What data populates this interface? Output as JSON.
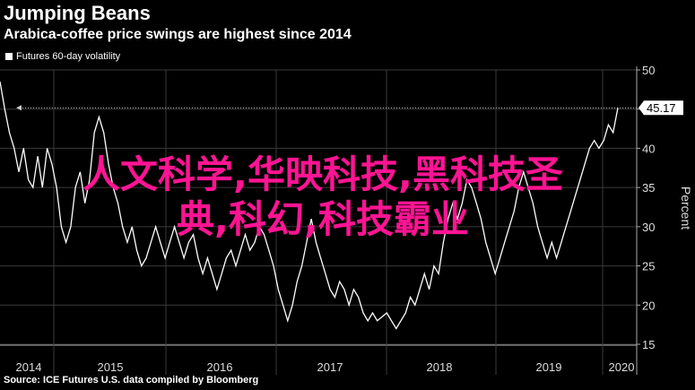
{
  "header": {
    "title": "Jumping Beans",
    "subtitle": "Arabica-coffee price swings are highest since 2014"
  },
  "legend": {
    "label": "Futures 60-day volatility"
  },
  "source": "Source: ICE Futures U.S. data compiled by Bloomberg",
  "overlay": {
    "line1": "人文科学,华映科技,黑科技圣",
    "line2": "典,科幻,科技霸业"
  },
  "colors": {
    "background": "#000000",
    "line": "#ffffff",
    "grid": "#3a3a3a",
    "overlay": "#ff1493"
  },
  "chart_data": {
    "type": "line",
    "ylabel": "Percent",
    "ylim": [
      15,
      50
    ],
    "yticks": [
      15,
      20,
      25,
      30,
      35,
      40,
      45,
      50
    ],
    "x_tick_labels": [
      "2014",
      "2015",
      "2016",
      "2017",
      "2018",
      "2019",
      "2020"
    ],
    "x_tick_positions": [
      2014.3,
      2015.5,
      2016.5,
      2017.5,
      2018.5,
      2019.5,
      2020.4
    ],
    "xlim": [
      2013.85,
      2020.6
    ],
    "last_value_label": "45.17",
    "reference_line": 45.17,
    "series": [
      {
        "values": [
          [
            2013.85,
            48.5
          ],
          [
            2013.9,
            45
          ],
          [
            2013.95,
            42
          ],
          [
            2014.0,
            40
          ],
          [
            2014.05,
            37
          ],
          [
            2014.1,
            40
          ],
          [
            2014.15,
            36
          ],
          [
            2014.2,
            35
          ],
          [
            2014.25,
            39
          ],
          [
            2014.3,
            35
          ],
          [
            2014.35,
            40
          ],
          [
            2014.4,
            38
          ],
          [
            2014.45,
            35
          ],
          [
            2014.5,
            30
          ],
          [
            2014.55,
            28
          ],
          [
            2014.6,
            30
          ],
          [
            2014.65,
            35
          ],
          [
            2014.7,
            37
          ],
          [
            2014.75,
            33
          ],
          [
            2014.8,
            36
          ],
          [
            2014.85,
            42
          ],
          [
            2014.9,
            44
          ],
          [
            2014.95,
            42
          ],
          [
            2015.0,
            38
          ],
          [
            2015.05,
            35
          ],
          [
            2015.1,
            33
          ],
          [
            2015.15,
            30
          ],
          [
            2015.2,
            28
          ],
          [
            2015.25,
            30
          ],
          [
            2015.3,
            27
          ],
          [
            2015.35,
            25
          ],
          [
            2015.4,
            26
          ],
          [
            2015.45,
            28
          ],
          [
            2015.5,
            30
          ],
          [
            2015.55,
            28
          ],
          [
            2015.6,
            26
          ],
          [
            2015.65,
            28
          ],
          [
            2015.7,
            30
          ],
          [
            2015.75,
            28
          ],
          [
            2015.8,
            26
          ],
          [
            2015.85,
            28
          ],
          [
            2015.9,
            29
          ],
          [
            2015.95,
            26
          ],
          [
            2016.0,
            24
          ],
          [
            2016.05,
            26
          ],
          [
            2016.1,
            24
          ],
          [
            2016.15,
            22
          ],
          [
            2016.2,
            24
          ],
          [
            2016.25,
            26
          ],
          [
            2016.3,
            27
          ],
          [
            2016.35,
            25
          ],
          [
            2016.4,
            27
          ],
          [
            2016.45,
            29
          ],
          [
            2016.5,
            27
          ],
          [
            2016.55,
            28
          ],
          [
            2016.6,
            30
          ],
          [
            2016.65,
            29
          ],
          [
            2016.7,
            27
          ],
          [
            2016.75,
            25
          ],
          [
            2016.8,
            22
          ],
          [
            2016.85,
            20
          ],
          [
            2016.9,
            18
          ],
          [
            2016.95,
            20
          ],
          [
            2017.0,
            23
          ],
          [
            2017.05,
            25
          ],
          [
            2017.1,
            28
          ],
          [
            2017.15,
            31
          ],
          [
            2017.2,
            28
          ],
          [
            2017.25,
            26
          ],
          [
            2017.3,
            24
          ],
          [
            2017.35,
            22
          ],
          [
            2017.4,
            21
          ],
          [
            2017.45,
            23
          ],
          [
            2017.5,
            22
          ],
          [
            2017.55,
            20
          ],
          [
            2017.6,
            22
          ],
          [
            2017.65,
            21
          ],
          [
            2017.7,
            19
          ],
          [
            2017.75,
            18
          ],
          [
            2017.8,
            19
          ],
          [
            2017.85,
            18
          ],
          [
            2017.9,
            18.5
          ],
          [
            2017.95,
            19
          ],
          [
            2018.0,
            18
          ],
          [
            2018.05,
            17
          ],
          [
            2018.1,
            18
          ],
          [
            2018.15,
            19
          ],
          [
            2018.2,
            21
          ],
          [
            2018.25,
            20
          ],
          [
            2018.3,
            22
          ],
          [
            2018.35,
            24
          ],
          [
            2018.4,
            22
          ],
          [
            2018.45,
            25
          ],
          [
            2018.5,
            24
          ],
          [
            2018.55,
            28
          ],
          [
            2018.6,
            31
          ],
          [
            2018.65,
            33
          ],
          [
            2018.7,
            31
          ],
          [
            2018.75,
            33
          ],
          [
            2018.8,
            36
          ],
          [
            2018.85,
            35
          ],
          [
            2018.9,
            33
          ],
          [
            2018.95,
            31
          ],
          [
            2019.0,
            28
          ],
          [
            2019.05,
            26
          ],
          [
            2019.1,
            24
          ],
          [
            2019.15,
            26
          ],
          [
            2019.2,
            28
          ],
          [
            2019.25,
            30
          ],
          [
            2019.3,
            32
          ],
          [
            2019.35,
            35
          ],
          [
            2019.4,
            37
          ],
          [
            2019.45,
            35
          ],
          [
            2019.5,
            33
          ],
          [
            2019.55,
            30
          ],
          [
            2019.6,
            28
          ],
          [
            2019.65,
            26
          ],
          [
            2019.7,
            28
          ],
          [
            2019.75,
            26
          ],
          [
            2019.8,
            28
          ],
          [
            2019.85,
            30
          ],
          [
            2019.9,
            32
          ],
          [
            2019.95,
            34
          ],
          [
            2020.0,
            36
          ],
          [
            2020.05,
            38
          ],
          [
            2020.1,
            40
          ],
          [
            2020.15,
            41
          ],
          [
            2020.2,
            40
          ],
          [
            2020.25,
            41
          ],
          [
            2020.3,
            43
          ],
          [
            2020.35,
            42
          ],
          [
            2020.4,
            45.17
          ]
        ]
      }
    ]
  }
}
